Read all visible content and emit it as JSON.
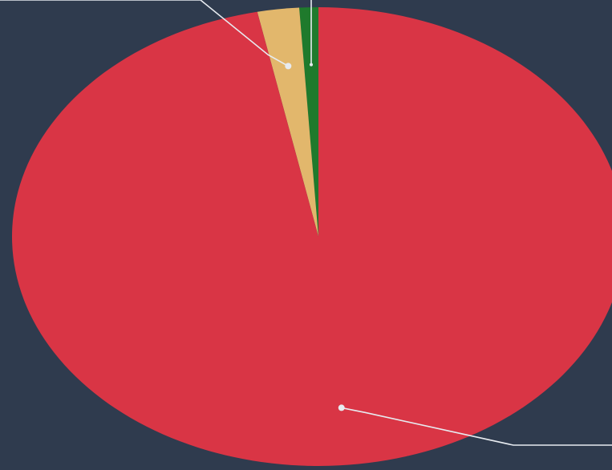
{
  "chart_data": {
    "type": "pie",
    "start_angle_deg": -90,
    "direction": "counterclockwise",
    "slices": [
      {
        "value": 1.0,
        "color": "#1f7a2c"
      },
      {
        "value": 2.2,
        "color": "#e2b76c"
      },
      {
        "value": 96.8,
        "color": "#d93545"
      }
    ],
    "legend": "none",
    "data_labels": "hidden",
    "leader_line_color": "#e7ebf0",
    "background": "#2f3b4e"
  }
}
